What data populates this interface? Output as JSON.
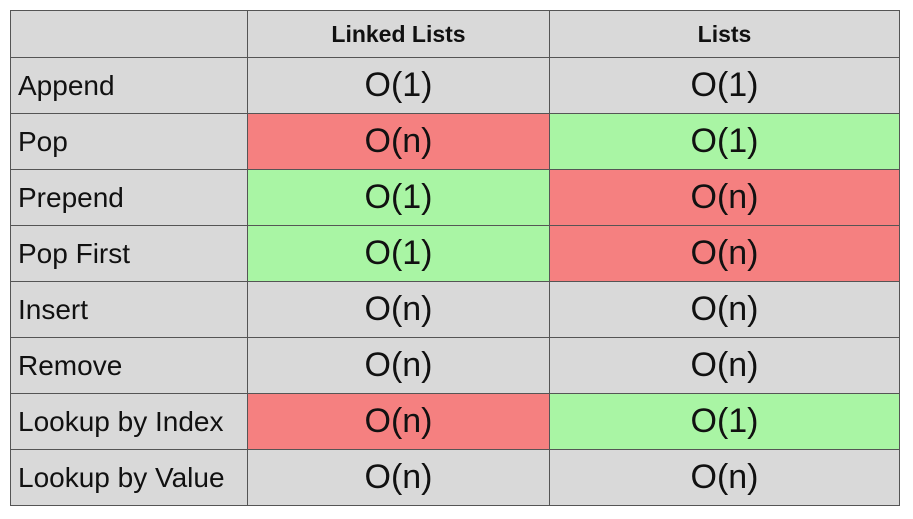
{
  "colors": {
    "header_bg": "#d9d9d9",
    "cell_bg": "#d9d9d9",
    "good": "#a9f5a4",
    "bad": "#f58080",
    "border": "#555555"
  },
  "table": {
    "headers": [
      "",
      "Linked Lists",
      "Lists"
    ],
    "rows": [
      {
        "operation": "Append",
        "linked_lists": "O(1)",
        "lists": "O(1)",
        "linked_lists_status": "neutral",
        "lists_status": "neutral"
      },
      {
        "operation": "Pop",
        "linked_lists": "O(n)",
        "lists": "O(1)",
        "linked_lists_status": "bad",
        "lists_status": "good"
      },
      {
        "operation": "Prepend",
        "linked_lists": "O(1)",
        "lists": "O(n)",
        "linked_lists_status": "good",
        "lists_status": "bad"
      },
      {
        "operation": "Pop First",
        "linked_lists": "O(1)",
        "lists": "O(n)",
        "linked_lists_status": "good",
        "lists_status": "bad"
      },
      {
        "operation": "Insert",
        "linked_lists": "O(n)",
        "lists": "O(n)",
        "linked_lists_status": "neutral",
        "lists_status": "neutral"
      },
      {
        "operation": "Remove",
        "linked_lists": "O(n)",
        "lists": "O(n)",
        "linked_lists_status": "neutral",
        "lists_status": "neutral"
      },
      {
        "operation": "Lookup by Index",
        "linked_lists": "O(n)",
        "lists": "O(1)",
        "linked_lists_status": "bad",
        "lists_status": "good"
      },
      {
        "operation": "Lookup by Value",
        "linked_lists": "O(n)",
        "lists": "O(n)",
        "linked_lists_status": "neutral",
        "lists_status": "neutral"
      }
    ]
  }
}
